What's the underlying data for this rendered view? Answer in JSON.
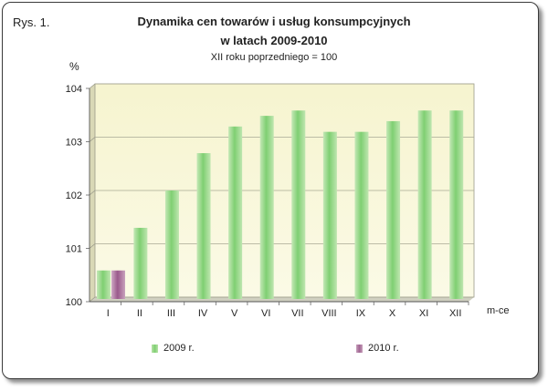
{
  "figure_label": "Rys. 1.",
  "chart_data": {
    "type": "bar",
    "title": "Dynamika cen towarów i usług konsumpcyjnych",
    "title_line2": "w latach 2009-2010",
    "subtitle": "XII roku poprzedniego = 100",
    "ylabel": "%",
    "xlabel": "m-ce",
    "ylim": [
      100,
      104
    ],
    "yticks": [
      "100",
      "101",
      "102",
      "103",
      "104"
    ],
    "grid": true,
    "legend_position": "bottom",
    "categories": [
      "I",
      "II",
      "III",
      "IV",
      "V",
      "VI",
      "VII",
      "VIII",
      "IX",
      "X",
      "XI",
      "XII"
    ],
    "series": [
      {
        "name": "2009 r.",
        "color": "#7fcf72",
        "values": [
          100.5,
          101.3,
          102.0,
          102.7,
          103.2,
          103.4,
          103.5,
          103.1,
          103.1,
          103.3,
          103.5,
          103.5
        ]
      },
      {
        "name": "2010 r.",
        "color": "#a06592",
        "values": [
          100.5,
          null,
          null,
          null,
          null,
          null,
          null,
          null,
          null,
          null,
          null,
          null
        ]
      }
    ]
  }
}
